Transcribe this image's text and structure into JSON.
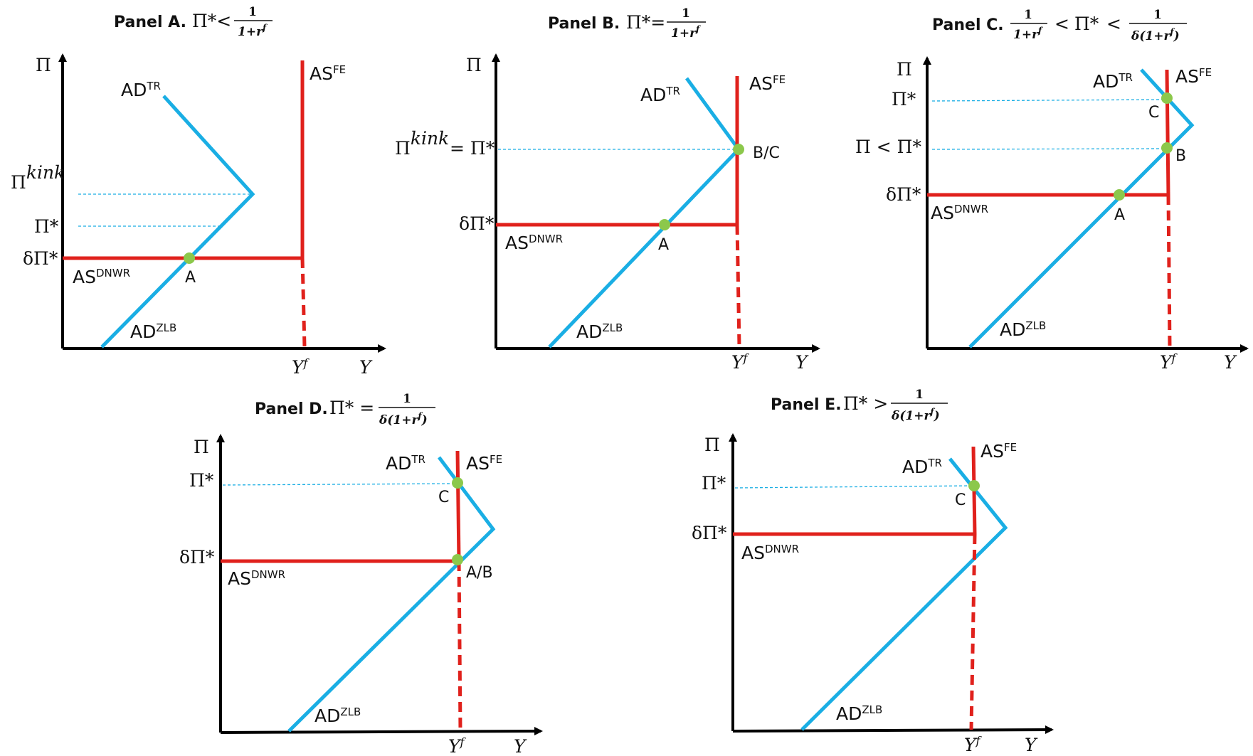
{
  "colors": {
    "axis": "#000000",
    "ad_curve": "#1aaee4",
    "as_curve": "#e0211c",
    "equilibrium_point": "#8cc84b",
    "guide_line": "#1aaee4"
  },
  "common": {
    "y_axis_symbol": "Π",
    "x_axis_symbol": "Y",
    "yf_base": "Y",
    "yf_sup": "f",
    "as_base": "AS",
    "ad_base": "AD",
    "sup_fe": "FE",
    "sup_dnwr": "DNWR",
    "sup_tr": "TR",
    "sup_zlb": "ZLB",
    "pi_star": "Π*",
    "delta_pi_star": "δΠ*",
    "pi_kink_base": "Π",
    "pi_kink_sup": "kink",
    "pi_lt_pi_star": "Π < Π*",
    "eq": "=",
    "frac_num": "1",
    "frac_den_a": "1+r",
    "frac_den_b_open": "δ(1+r",
    "frac_den_b_close": ")",
    "frac_sup": "f"
  },
  "panels": {
    "a": {
      "title": "Panel A.",
      "relation": "Π*<",
      "points": [
        "A"
      ]
    },
    "b": {
      "title": "Panel B.",
      "relation": "Π*=",
      "y_label_rel": "= Π*",
      "points": [
        "A",
        "B/C"
      ]
    },
    "c": {
      "title": "Panel C.",
      "relation_1": "<",
      "relation_2": "Π*",
      "relation_3": "<",
      "points": [
        "A",
        "B",
        "C"
      ]
    },
    "d": {
      "title": "Panel D.",
      "relation": "Π* =",
      "points": [
        "C",
        "A/B"
      ]
    },
    "e": {
      "title": "Panel E.",
      "relation": "Π* >",
      "points": [
        "C"
      ]
    }
  }
}
